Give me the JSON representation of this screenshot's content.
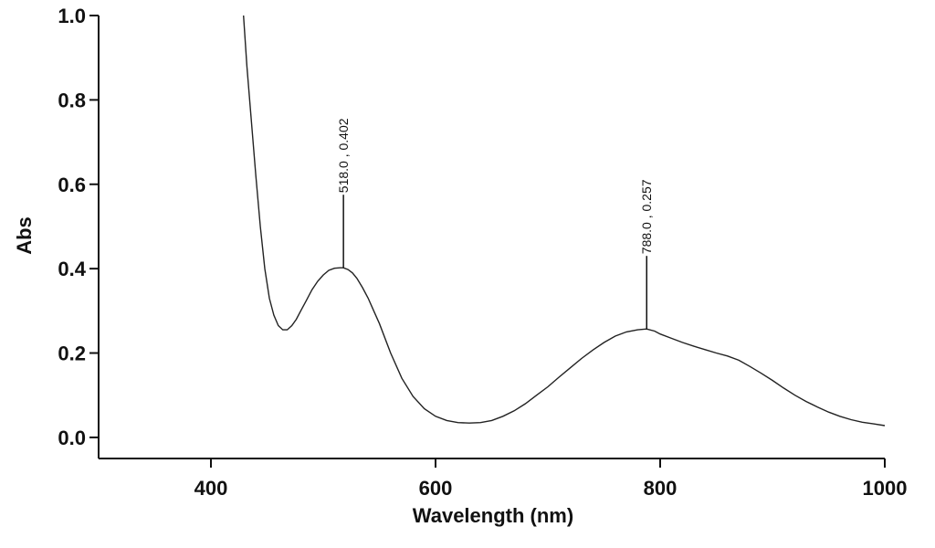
{
  "chart_data": {
    "type": "line",
    "title": "",
    "xlabel": "Wavelength (nm)",
    "ylabel": "Abs",
    "xlim": [
      300,
      1000
    ],
    "ylim": [
      -0.05,
      1.0
    ],
    "x_ticks": [
      400,
      600,
      800,
      1000
    ],
    "y_ticks": [
      0.0,
      0.2,
      0.4,
      0.6,
      0.8,
      1.0
    ],
    "x_tick_labels": [
      "400",
      "600",
      "800",
      "1000"
    ],
    "y_tick_labels": [
      "0.0",
      "0.2",
      "0.4",
      "0.6",
      "0.8",
      "1.0"
    ],
    "grid": false,
    "series": [
      {
        "name": "absorbance",
        "x": [
          429,
          432,
          436,
          440,
          444,
          448,
          452,
          456,
          460,
          464,
          468,
          472,
          476,
          480,
          485,
          490,
          495,
          500,
          505,
          510,
          515,
          518,
          522,
          526,
          530,
          535,
          540,
          545,
          550,
          560,
          570,
          580,
          590,
          600,
          610,
          620,
          630,
          640,
          650,
          660,
          670,
          680,
          690,
          700,
          710,
          720,
          730,
          740,
          750,
          760,
          770,
          780,
          788,
          795,
          800,
          810,
          820,
          830,
          840,
          850,
          860,
          870,
          880,
          890,
          900,
          910,
          920,
          930,
          940,
          950,
          960,
          970,
          980,
          990,
          1000
        ],
        "y": [
          1.0,
          0.88,
          0.75,
          0.62,
          0.5,
          0.4,
          0.33,
          0.29,
          0.265,
          0.255,
          0.255,
          0.265,
          0.28,
          0.3,
          0.325,
          0.35,
          0.37,
          0.385,
          0.396,
          0.401,
          0.402,
          0.402,
          0.398,
          0.39,
          0.377,
          0.355,
          0.33,
          0.3,
          0.27,
          0.2,
          0.14,
          0.097,
          0.068,
          0.05,
          0.04,
          0.035,
          0.034,
          0.035,
          0.04,
          0.05,
          0.063,
          0.08,
          0.1,
          0.12,
          0.143,
          0.165,
          0.187,
          0.207,
          0.225,
          0.24,
          0.25,
          0.255,
          0.257,
          0.252,
          0.245,
          0.235,
          0.225,
          0.216,
          0.208,
          0.2,
          0.193,
          0.183,
          0.168,
          0.152,
          0.135,
          0.117,
          0.1,
          0.085,
          0.072,
          0.06,
          0.05,
          0.042,
          0.036,
          0.032,
          0.028
        ]
      }
    ],
    "annotations": [
      {
        "x": 518.0,
        "y": 0.402,
        "text": "518.0 , 0.402"
      },
      {
        "x": 788.0,
        "y": 0.257,
        "text": "788.0 , 0.257"
      }
    ]
  }
}
